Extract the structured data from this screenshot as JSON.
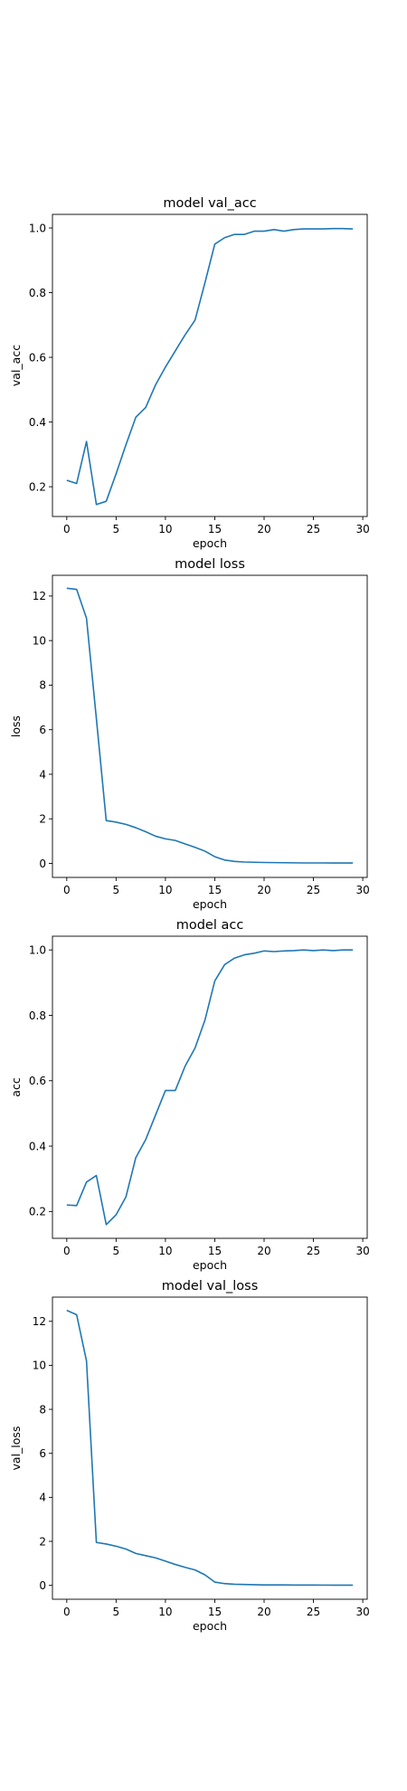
{
  "chart_data": [
    {
      "type": "line",
      "title": "model val_acc",
      "xlabel": "epoch",
      "ylabel": "val_acc",
      "xlim": [
        -1.45,
        30.45
      ],
      "ylim": [
        0.108,
        1.042
      ],
      "xticks": [
        0,
        5,
        10,
        15,
        20,
        25,
        30
      ],
      "yticks": [
        0.2,
        0.4,
        0.6,
        0.8,
        1.0
      ],
      "ytick_labels": [
        "0.2",
        "0.4",
        "0.6",
        "0.8",
        "1.0"
      ],
      "grid": false,
      "color": "#1f77b4",
      "x": [
        0,
        1,
        2,
        3,
        4,
        5,
        6,
        7,
        8,
        9,
        10,
        11,
        12,
        13,
        14,
        15,
        16,
        17,
        18,
        19,
        20,
        21,
        22,
        23,
        24,
        25,
        26,
        27,
        28,
        29
      ],
      "y": [
        0.22,
        0.21,
        0.34,
        0.145,
        0.155,
        0.24,
        0.33,
        0.415,
        0.445,
        0.515,
        0.57,
        0.62,
        0.67,
        0.715,
        0.83,
        0.95,
        0.97,
        0.98,
        0.98,
        0.99,
        0.99,
        0.995,
        0.99,
        0.995,
        0.997,
        0.997,
        0.997,
        0.998,
        0.998,
        0.997
      ]
    },
    {
      "type": "line",
      "title": "model loss",
      "xlabel": "epoch",
      "ylabel": "loss",
      "xlim": [
        -1.45,
        30.45
      ],
      "ylim": [
        -0.63,
        12.93
      ],
      "xticks": [
        0,
        5,
        10,
        15,
        20,
        25,
        30
      ],
      "yticks": [
        0,
        2,
        4,
        6,
        8,
        10,
        12
      ],
      "ytick_labels": [
        "0",
        "2",
        "4",
        "6",
        "8",
        "10",
        "12"
      ],
      "grid": false,
      "color": "#1f77b4",
      "x": [
        0,
        1,
        2,
        3,
        4,
        5,
        6,
        7,
        8,
        9,
        10,
        11,
        12,
        13,
        14,
        15,
        16,
        17,
        18,
        19,
        20,
        21,
        22,
        23,
        24,
        25,
        26,
        27,
        28,
        29
      ],
      "y": [
        12.35,
        12.3,
        11.0,
        6.5,
        1.92,
        1.85,
        1.75,
        1.6,
        1.42,
        1.22,
        1.1,
        1.03,
        0.87,
        0.72,
        0.55,
        0.3,
        0.15,
        0.09,
        0.06,
        0.05,
        0.04,
        0.035,
        0.03,
        0.025,
        0.02,
        0.02,
        0.02,
        0.018,
        0.018,
        0.017
      ]
    },
    {
      "type": "line",
      "title": "model acc",
      "xlabel": "epoch",
      "ylabel": "acc",
      "xlim": [
        -1.45,
        30.45
      ],
      "ylim": [
        0.118,
        1.042
      ],
      "xticks": [
        0,
        5,
        10,
        15,
        20,
        25,
        30
      ],
      "yticks": [
        0.2,
        0.4,
        0.6,
        0.8,
        1.0
      ],
      "ytick_labels": [
        "0.2",
        "0.4",
        "0.6",
        "0.8",
        "1.0"
      ],
      "grid": false,
      "color": "#1f77b4",
      "x": [
        0,
        1,
        2,
        3,
        4,
        5,
        6,
        7,
        8,
        9,
        10,
        11,
        12,
        13,
        14,
        15,
        16,
        17,
        18,
        19,
        20,
        21,
        22,
        23,
        24,
        25,
        26,
        27,
        28,
        29
      ],
      "y": [
        0.22,
        0.218,
        0.29,
        0.31,
        0.16,
        0.19,
        0.245,
        0.365,
        0.42,
        0.495,
        0.57,
        0.57,
        0.645,
        0.7,
        0.785,
        0.905,
        0.955,
        0.975,
        0.985,
        0.99,
        0.997,
        0.995,
        0.997,
        0.998,
        1.0,
        0.998,
        1.0,
        0.998,
        1.0,
        1.0
      ]
    },
    {
      "type": "line",
      "title": "model val_loss",
      "xlabel": "epoch",
      "ylabel": "val_loss",
      "xlim": [
        -1.45,
        30.45
      ],
      "ylim": [
        -0.63,
        13.1
      ],
      "xticks": [
        0,
        5,
        10,
        15,
        20,
        25,
        30
      ],
      "yticks": [
        0,
        2,
        4,
        6,
        8,
        10,
        12
      ],
      "ytick_labels": [
        "0",
        "2",
        "4",
        "6",
        "8",
        "10",
        "12"
      ],
      "grid": false,
      "color": "#1f77b4",
      "x": [
        0,
        1,
        2,
        3,
        4,
        5,
        6,
        7,
        8,
        9,
        10,
        11,
        12,
        13,
        14,
        15,
        16,
        17,
        18,
        19,
        20,
        21,
        22,
        23,
        24,
        25,
        26,
        27,
        28,
        29
      ],
      "y": [
        12.5,
        12.3,
        10.2,
        1.95,
        1.88,
        1.78,
        1.65,
        1.45,
        1.35,
        1.25,
        1.1,
        0.95,
        0.82,
        0.7,
        0.48,
        0.15,
        0.08,
        0.05,
        0.04,
        0.03,
        0.02,
        0.02,
        0.02,
        0.015,
        0.015,
        0.015,
        0.012,
        0.01,
        0.01,
        0.01
      ]
    }
  ]
}
